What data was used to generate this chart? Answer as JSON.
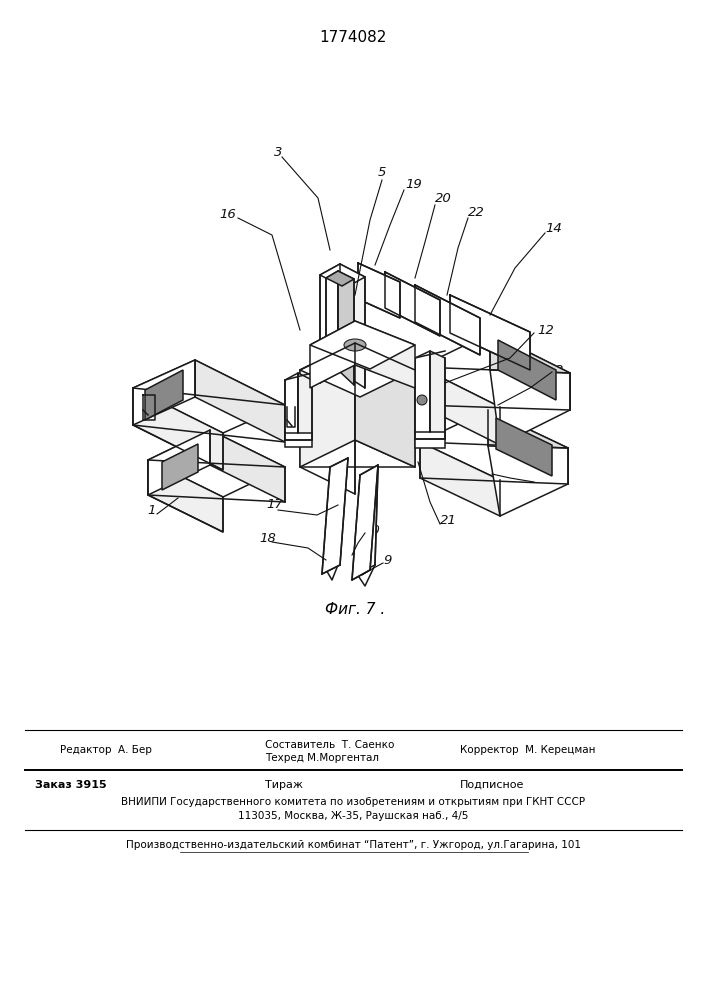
{
  "patent_number": "1774082",
  "figure_caption": "Фиг. 7 .",
  "editor_line": {
    "left": "Редактор  А. Бер",
    "center_top": "Составитель  Т. Саенко",
    "center_bot": "Техред М.Моргентал",
    "right": "Корректор  М. Керецман"
  },
  "order_line": {
    "left": "Заказ 3915",
    "center": "Тираж",
    "right": "Подписное"
  },
  "vniipii_line": "ВНИИПИ Государственного комитета по изобретениям и открытиям при ГКНТ СССР",
  "address_line": "113035, Москва, Ж-35, Раушская наб., 4/5",
  "production_line": "Производственно-издательский комбинат “Патент”, г. Ужгород, ул.Гагарина, 101"
}
